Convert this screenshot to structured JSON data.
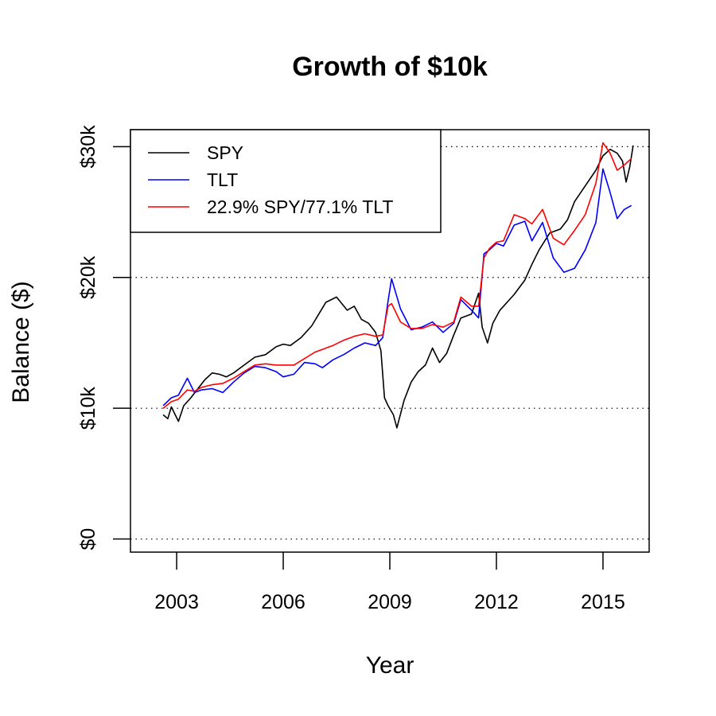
{
  "chart_data": {
    "type": "line",
    "title": "Growth of $10k",
    "xlabel": "Year",
    "ylabel": "Balance ($)",
    "xlim": [
      2001.7,
      2016.3
    ],
    "ylim": [
      -1000,
      31300
    ],
    "x_ticks": [
      {
        "value": 2003,
        "label": "2003"
      },
      {
        "value": 2006,
        "label": "2006"
      },
      {
        "value": 2009,
        "label": "2009"
      },
      {
        "value": 2012,
        "label": "2012"
      },
      {
        "value": 2015,
        "label": "2015"
      }
    ],
    "y_ticks": [
      {
        "value": 0,
        "label": "$0"
      },
      {
        "value": 10000,
        "label": "$10k"
      },
      {
        "value": 20000,
        "label": "$20k"
      },
      {
        "value": 30000,
        "label": "$30k"
      }
    ],
    "grid": {
      "horizontal_dotted_at": [
        0,
        10000,
        20000,
        30000
      ]
    },
    "legend_position": "top-left",
    "series": [
      {
        "name": "SPY",
        "color": "#000000",
        "x": [
          2002.62,
          2002.75,
          2002.85,
          2003.05,
          2003.2,
          2003.4,
          2003.6,
          2003.8,
          2004.0,
          2004.2,
          2004.4,
          2004.6,
          2004.9,
          2005.2,
          2005.5,
          2005.8,
          2006.0,
          2006.2,
          2006.5,
          2006.8,
          2007.0,
          2007.2,
          2007.5,
          2007.8,
          2008.0,
          2008.2,
          2008.4,
          2008.6,
          2008.75,
          2008.85,
          2008.95,
          2009.1,
          2009.2,
          2009.4,
          2009.6,
          2009.8,
          2010.0,
          2010.2,
          2010.4,
          2010.6,
          2010.8,
          2011.0,
          2011.3,
          2011.5,
          2011.6,
          2011.75,
          2011.9,
          2012.1,
          2012.3,
          2012.5,
          2012.8,
          2013.0,
          2013.2,
          2013.5,
          2013.8,
          2014.0,
          2014.2,
          2014.5,
          2014.8,
          2015.0,
          2015.2,
          2015.4,
          2015.55,
          2015.65,
          2015.75,
          2015.85
        ],
        "values": [
          9500,
          9200,
          10100,
          9000,
          10200,
          10800,
          11500,
          12200,
          12700,
          12600,
          12400,
          12700,
          13300,
          13900,
          14100,
          14700,
          14900,
          14800,
          15400,
          16300,
          17200,
          18100,
          18500,
          17500,
          17800,
          16800,
          16500,
          15800,
          14400,
          10800,
          10200,
          9500,
          8500,
          10600,
          12000,
          12800,
          13300,
          14600,
          13500,
          14200,
          15600,
          16900,
          17200,
          18800,
          16200,
          15000,
          16500,
          17500,
          18100,
          18700,
          19800,
          21000,
          22100,
          23400,
          23700,
          24400,
          25800,
          27000,
          28200,
          29300,
          29800,
          29500,
          28900,
          27300,
          28400,
          30100
        ]
      },
      {
        "name": "TLT",
        "color": "#0000ff",
        "x": [
          2002.62,
          2002.85,
          2003.05,
          2003.3,
          2003.5,
          2003.7,
          2004.0,
          2004.3,
          2004.6,
          2004.9,
          2005.2,
          2005.5,
          2005.8,
          2006.0,
          2006.3,
          2006.6,
          2006.9,
          2007.1,
          2007.4,
          2007.7,
          2008.0,
          2008.3,
          2008.6,
          2008.8,
          2008.95,
          2009.05,
          2009.3,
          2009.6,
          2009.9,
          2010.2,
          2010.5,
          2010.8,
          2011.0,
          2011.3,
          2011.5,
          2011.65,
          2011.8,
          2012.0,
          2012.2,
          2012.5,
          2012.8,
          2013.0,
          2013.3,
          2013.6,
          2013.9,
          2014.2,
          2014.5,
          2014.8,
          2015.0,
          2015.2,
          2015.4,
          2015.6,
          2015.8
        ],
        "values": [
          10200,
          10800,
          11000,
          12300,
          11200,
          11400,
          11500,
          11200,
          12000,
          12700,
          13200,
          13100,
          12800,
          12400,
          12600,
          13500,
          13400,
          13100,
          13700,
          14100,
          14600,
          15000,
          14800,
          15400,
          18200,
          19900,
          17600,
          16000,
          16200,
          16600,
          15800,
          16500,
          18300,
          17500,
          16900,
          21800,
          22100,
          22600,
          22400,
          24000,
          24300,
          22800,
          24200,
          21500,
          20400,
          20700,
          22100,
          24200,
          28300,
          26500,
          24500,
          25200,
          25500
        ]
      },
      {
        "name": "22.9% SPY/77.1% TLT",
        "color": "#ff0000",
        "x": [
          2002.62,
          2002.85,
          2003.05,
          2003.3,
          2003.5,
          2003.7,
          2004.0,
          2004.3,
          2004.6,
          2004.9,
          2005.2,
          2005.5,
          2005.8,
          2006.0,
          2006.3,
          2006.6,
          2006.9,
          2007.1,
          2007.4,
          2007.7,
          2008.0,
          2008.3,
          2008.6,
          2008.8,
          2008.95,
          2009.05,
          2009.3,
          2009.6,
          2009.9,
          2010.2,
          2010.5,
          2010.8,
          2011.0,
          2011.3,
          2011.5,
          2011.65,
          2011.8,
          2012.0,
          2012.2,
          2012.5,
          2012.8,
          2013.0,
          2013.3,
          2013.6,
          2013.9,
          2014.2,
          2014.5,
          2014.8,
          2015.0,
          2015.2,
          2015.4,
          2015.6,
          2015.8
        ],
        "values": [
          10000,
          10500,
          10700,
          11400,
          11300,
          11600,
          11800,
          11900,
          12300,
          12800,
          13300,
          13400,
          13300,
          13300,
          13300,
          13800,
          14300,
          14500,
          14800,
          15200,
          15500,
          15700,
          15500,
          15600,
          17800,
          18000,
          16600,
          16100,
          16100,
          16400,
          16200,
          16600,
          18500,
          17800,
          17800,
          21500,
          22200,
          22700,
          22800,
          24800,
          24500,
          24100,
          25200,
          23000,
          22500,
          23600,
          24800,
          27200,
          30300,
          29500,
          28200,
          28600,
          29100
        ]
      }
    ]
  }
}
